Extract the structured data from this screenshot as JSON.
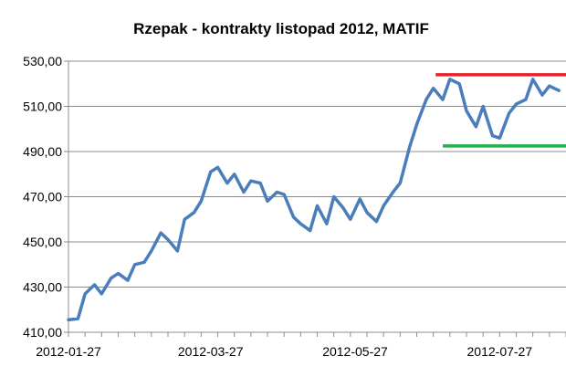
{
  "chart_data": {
    "type": "line",
    "title": "Rzepak - kontrakty listopad 2012, MATIF",
    "xlabel": "",
    "ylabel": "",
    "ylim": [
      410,
      530
    ],
    "y_ticks": [
      "410,00",
      "430,00",
      "450,00",
      "470,00",
      "490,00",
      "510,00",
      "530,00"
    ],
    "x_ticks": [
      "2012-01-27",
      "2012-03-27",
      "2012-05-27",
      "2012-07-27"
    ],
    "grid": "horizontal",
    "legend": "none",
    "series": [
      {
        "color": "#4a7ebb",
        "x": [
          "2012-01-27",
          "2012-01-31",
          "2012-02-03",
          "2012-02-07",
          "2012-02-10",
          "2012-02-14",
          "2012-02-17",
          "2012-02-21",
          "2012-02-24",
          "2012-02-28",
          "2012-03-02",
          "2012-03-06",
          "2012-03-09",
          "2012-03-13",
          "2012-03-16",
          "2012-03-20",
          "2012-03-23",
          "2012-03-27",
          "2012-03-30",
          "2012-04-03",
          "2012-04-06",
          "2012-04-10",
          "2012-04-13",
          "2012-04-17",
          "2012-04-20",
          "2012-04-24",
          "2012-04-27",
          "2012-05-01",
          "2012-05-04",
          "2012-05-08",
          "2012-05-11",
          "2012-05-15",
          "2012-05-18",
          "2012-05-22",
          "2012-05-25",
          "2012-05-29",
          "2012-06-01",
          "2012-06-05",
          "2012-06-08",
          "2012-06-12",
          "2012-06-15",
          "2012-06-19",
          "2012-06-22",
          "2012-06-26",
          "2012-06-29",
          "2012-07-03",
          "2012-07-06",
          "2012-07-10",
          "2012-07-13",
          "2012-07-17",
          "2012-07-20",
          "2012-07-24",
          "2012-07-27",
          "2012-07-31",
          "2012-08-03",
          "2012-08-07",
          "2012-08-10",
          "2012-08-14",
          "2012-08-17",
          "2012-08-21"
        ],
        "values": [
          415.5,
          416,
          427,
          431,
          427,
          434,
          436,
          433,
          440,
          441,
          446,
          454,
          451,
          446,
          460,
          463,
          468,
          481,
          483,
          476,
          480,
          472,
          477,
          476,
          468,
          472,
          471,
          461,
          458,
          455,
          466,
          458,
          470,
          465,
          460,
          469,
          463,
          459,
          466,
          472,
          476,
          492,
          502,
          513,
          518,
          513,
          522,
          520,
          508,
          501,
          510,
          497,
          496,
          507,
          511,
          513,
          522,
          515,
          519,
          517
        ]
      }
    ],
    "reference_lines": [
      {
        "color": "#e8202a",
        "value": 524
      },
      {
        "color": "#22b14c",
        "value": 492.5
      }
    ]
  }
}
